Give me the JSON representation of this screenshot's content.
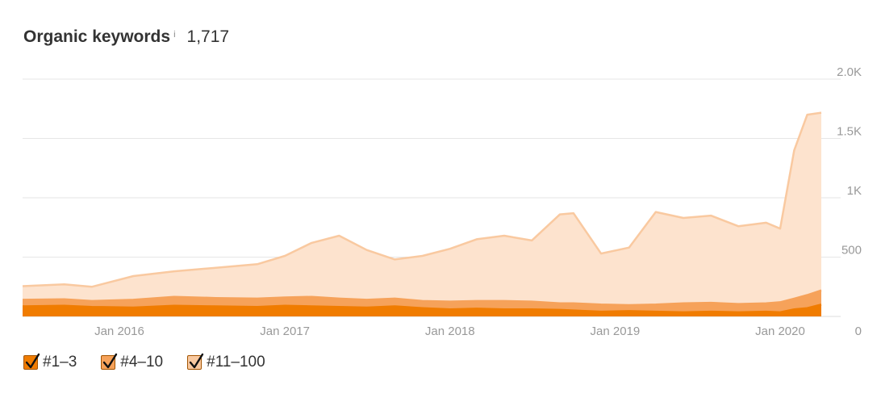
{
  "header": {
    "title": "Organic keywords",
    "info_glyph": "i",
    "value": "1,717"
  },
  "colors": {
    "top3": "#F07C00",
    "top10": "#F6A25A",
    "top100": "#F9C9A0",
    "top100_fill": "#FDE3CE",
    "grid": "#E6E6E6",
    "axis_text": "#999999"
  },
  "legend": [
    {
      "label": "#1–3",
      "checked": true,
      "color": "#F07C00"
    },
    {
      "label": "#4–10",
      "checked": true,
      "color": "#F6A25A"
    },
    {
      "label": "#11–100",
      "checked": true,
      "color": "#F9C9A0"
    }
  ],
  "chart_data": {
    "type": "area",
    "stacked": true,
    "title": "",
    "xlabel": "",
    "ylabel": "",
    "x_ticks": [
      "Jan 2016",
      "Jan 2017",
      "Jan 2018",
      "Jan 2019",
      "Jan 2020"
    ],
    "y_ticks": [
      "0",
      "500",
      "1K",
      "1.5K",
      "2.0K"
    ],
    "ylim": [
      0,
      2000
    ],
    "grid": true,
    "legend_position": "bottom-left",
    "x": [
      "2015-06",
      "2015-09",
      "2015-11",
      "2016-02",
      "2016-05",
      "2016-08",
      "2016-11",
      "2017-01",
      "2017-03",
      "2017-05",
      "2017-07",
      "2017-09",
      "2017-11",
      "2018-01",
      "2018-03",
      "2018-05",
      "2018-07",
      "2018-09",
      "2018-10",
      "2018-12",
      "2019-02",
      "2019-04",
      "2019-06",
      "2019-08",
      "2019-10",
      "2019-12",
      "2020-01",
      "2020-02",
      "2020-03",
      "2020-04"
    ],
    "series": [
      {
        "name": "#1–3",
        "values": [
          85,
          90,
          80,
          75,
          90,
          85,
          80,
          90,
          85,
          80,
          75,
          85,
          70,
          60,
          65,
          60,
          60,
          55,
          50,
          40,
          45,
          40,
          35,
          40,
          35,
          40,
          35,
          60,
          70,
          100
        ]
      },
      {
        "name": "#4–10",
        "values": [
          140,
          145,
          130,
          140,
          165,
          155,
          150,
          160,
          165,
          150,
          140,
          150,
          130,
          125,
          130,
          130,
          125,
          110,
          110,
          100,
          95,
          100,
          110,
          115,
          105,
          110,
          120,
          150,
          180,
          220
        ]
      },
      {
        "name": "#11–100",
        "values": [
          255,
          270,
          250,
          340,
          380,
          410,
          440,
          510,
          620,
          680,
          560,
          480,
          510,
          570,
          650,
          680,
          640,
          860,
          870,
          530,
          580,
          880,
          830,
          850,
          760,
          790,
          740,
          1400,
          1700,
          1717
        ]
      }
    ]
  }
}
